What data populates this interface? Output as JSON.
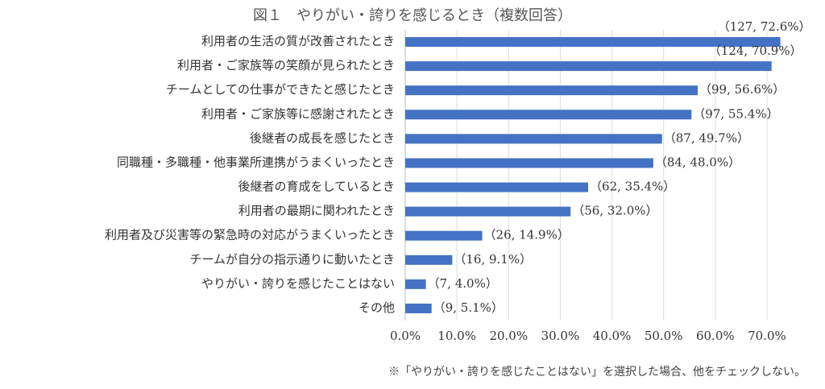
{
  "chart_data": {
    "type": "bar",
    "orientation": "horizontal",
    "title": "図１　やりがい・誇りを感じるとき（複数回答）",
    "categories": [
      "利用者の生活の質が改善されたとき",
      "利用者・ご家族等の笑顔が見られたとき",
      "チームとしての仕事ができたと感じたとき",
      "利用者・ご家族等に感謝されたとき",
      "後継者の成長を感じたとき",
      "同職種・多職種・他事業所連携がうまくいったとき",
      "後継者の育成をしているとき",
      "利用者の最期に関われたとき",
      "利用者及び災害等の緊急時の対応がうまくいったとき",
      "チームが自分の指示通りに動いたとき",
      "やりがい・誇りを感じたことはない",
      "その他"
    ],
    "values": [
      72.6,
      70.9,
      56.6,
      55.4,
      49.7,
      48.0,
      35.4,
      32.0,
      14.9,
      9.1,
      4.0,
      5.1
    ],
    "value_labels": [
      "（127, 72.6%）",
      "（124, 70.9%）",
      "（99, 56.6%）",
      "（97, 55.4%）",
      "（87, 49.7%）",
      "（84, 48.0%）",
      "（62, 35.4%）",
      "（56, 32.0%）",
      "（26, 14.9%）",
      "（16, 9.1%）",
      "（7, 4.0%）",
      "（9, 5.1%）"
    ],
    "color": "#4472c4",
    "xlim": [
      0,
      75
    ],
    "xticks": [
      {
        "value": 0,
        "label": "0.0%"
      },
      {
        "value": 10,
        "label": "10.0%"
      },
      {
        "value": 20,
        "label": "20.0%"
      },
      {
        "value": 30,
        "label": "30.0%"
      },
      {
        "value": 40,
        "label": "40.0%"
      },
      {
        "value": 50,
        "label": "50.0%"
      },
      {
        "value": 60,
        "label": "60.0%"
      },
      {
        "value": 70,
        "label": "70.0%"
      }
    ],
    "grid": true,
    "annotation": "※「やりがい・誇りを感じたことはない」を選択した場合、他をチェックしない。"
  }
}
